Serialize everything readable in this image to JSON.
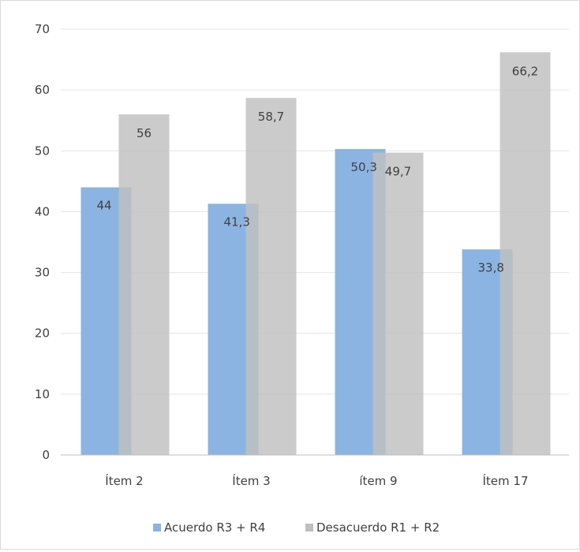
{
  "chart_data": {
    "type": "bar",
    "categories": [
      "Ítem 2",
      "Ítem  3",
      "ítem 9",
      "Ítem 17"
    ],
    "series": [
      {
        "name": "Acuerdo R3 + R4",
        "values": [
          44,
          41.3,
          50.3,
          33.8
        ],
        "labels": [
          "44",
          "41,3",
          "50,3",
          "33,8"
        ],
        "color": "#8cb4e2"
      },
      {
        "name": "Desacuerdo R1 + R2",
        "values": [
          56,
          58.7,
          49.7,
          66.2
        ],
        "labels": [
          "56",
          "58,7",
          "49,7",
          "66,2"
        ],
        "color": "#bfbfbf"
      }
    ],
    "ylim": [
      0,
      70
    ],
    "yticks": [
      0,
      10,
      20,
      30,
      40,
      50,
      60,
      70
    ],
    "grid": true,
    "legend": "bottom",
    "title": "",
    "xlabel": "",
    "ylabel": ""
  }
}
